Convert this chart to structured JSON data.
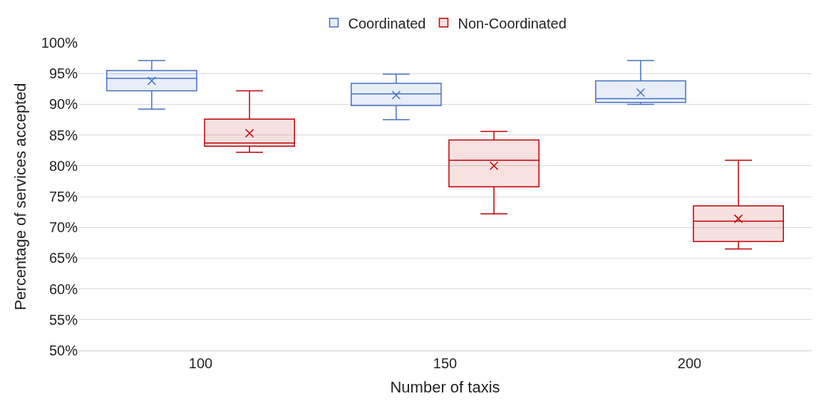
{
  "chart_data": {
    "type": "box",
    "xlabel": "Number of taxis",
    "ylabel": "Percentage of services accepted",
    "categories": [
      "100",
      "150",
      "200"
    ],
    "series": [
      {
        "name": "Coordinated",
        "color": "#4472c4",
        "boxes": [
          {
            "low": 89.2,
            "q1": 92.2,
            "median": 94.2,
            "q3": 95.5,
            "high": 97.1,
            "mean": 93.8
          },
          {
            "low": 87.5,
            "q1": 89.8,
            "median": 91.7,
            "q3": 93.4,
            "high": 94.9,
            "mean": 91.5
          },
          {
            "low": 90.0,
            "q1": 90.3,
            "median": 90.9,
            "q3": 93.8,
            "high": 97.1,
            "mean": 91.9
          }
        ]
      },
      {
        "name": "Non-Coordinated",
        "color": "#c00000",
        "boxes": [
          {
            "low": 82.2,
            "q1": 83.2,
            "median": 83.7,
            "q3": 87.6,
            "high": 92.2,
            "mean": 85.3
          },
          {
            "low": 72.2,
            "q1": 76.6,
            "median": 80.9,
            "q3": 84.2,
            "high": 85.6,
            "mean": 80.0
          },
          {
            "low": 66.5,
            "q1": 67.7,
            "median": 71.0,
            "q3": 73.5,
            "high": 80.9,
            "mean": 71.4
          }
        ]
      }
    ],
    "ylim": [
      50,
      100
    ],
    "yticks": [
      {
        "value": 50,
        "label": "50%"
      },
      {
        "value": 55,
        "label": "55%"
      },
      {
        "value": 60,
        "label": "60%"
      },
      {
        "value": 65,
        "label": "65%"
      },
      {
        "value": 70,
        "label": "70%"
      },
      {
        "value": 75,
        "label": "75%"
      },
      {
        "value": 80,
        "label": "80%"
      },
      {
        "value": 85,
        "label": "85%"
      },
      {
        "value": 90,
        "label": "90%"
      },
      {
        "value": 95,
        "label": "95%"
      },
      {
        "value": 100,
        "label": "100%"
      }
    ],
    "grid": "y",
    "legend": "top",
    "marker": "cross"
  }
}
